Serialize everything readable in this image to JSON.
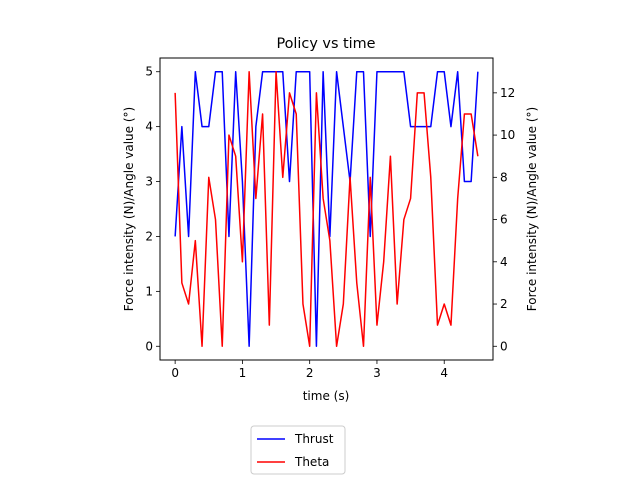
{
  "chart_data": {
    "type": "line",
    "title": "Policy vs time",
    "xlabel": "time (s)",
    "ylabel_left": "Force intensity (N)/Angle value (°)",
    "ylabel_right": "Force intensity (N)/Angle value (°)",
    "xlim": [
      -0.225,
      4.725
    ],
    "ylim_left": [
      -0.25,
      5.25
    ],
    "ylim_right": [
      -0.65,
      13.65
    ],
    "x_ticks": [
      0,
      1,
      2,
      3,
      4
    ],
    "y_ticks_left": [
      0,
      1,
      2,
      3,
      4,
      5
    ],
    "y_ticks_right": [
      0,
      2,
      4,
      6,
      8,
      10,
      12
    ],
    "grid": false,
    "legend_position": "bottom-center",
    "x": [
      0,
      0.1,
      0.2,
      0.3,
      0.4,
      0.5,
      0.6,
      0.7,
      0.8,
      0.9,
      1.0,
      1.1,
      1.2,
      1.3,
      1.4,
      1.5,
      1.6,
      1.7,
      1.8,
      1.9,
      2.0,
      2.1,
      2.2,
      2.3,
      2.4,
      2.5,
      2.6,
      2.7,
      2.8,
      2.9,
      3.0,
      3.1,
      3.2,
      3.3,
      3.4,
      3.5,
      3.6,
      3.7,
      3.8,
      3.9,
      4.0,
      4.1,
      4.2,
      4.3,
      4.4,
      4.5
    ],
    "series": [
      {
        "name": "Thrust",
        "axis": "left",
        "color": "#0000ff",
        "values": [
          2,
          4,
          2,
          5,
          4,
          4,
          5,
          5,
          2,
          5,
          3,
          0,
          4,
          5,
          5,
          5,
          5,
          3,
          5,
          5,
          5,
          0,
          5,
          2,
          5,
          4,
          3,
          5,
          5,
          2,
          5,
          5,
          5,
          5,
          5,
          4,
          4,
          4,
          4,
          5,
          5,
          4,
          5,
          3,
          3,
          5
        ]
      },
      {
        "name": "Theta",
        "axis": "right",
        "color": "#ff0000",
        "values": [
          12,
          3,
          2,
          5,
          0,
          8,
          6,
          0,
          10,
          9,
          4,
          13,
          7,
          11,
          1,
          13,
          8,
          12,
          11,
          2,
          0,
          12,
          7,
          5,
          0,
          2,
          8,
          3,
          0,
          8,
          1,
          4,
          9,
          2,
          6,
          7,
          12,
          12,
          8,
          1,
          2,
          1,
          7,
          11,
          11,
          9
        ]
      }
    ]
  }
}
